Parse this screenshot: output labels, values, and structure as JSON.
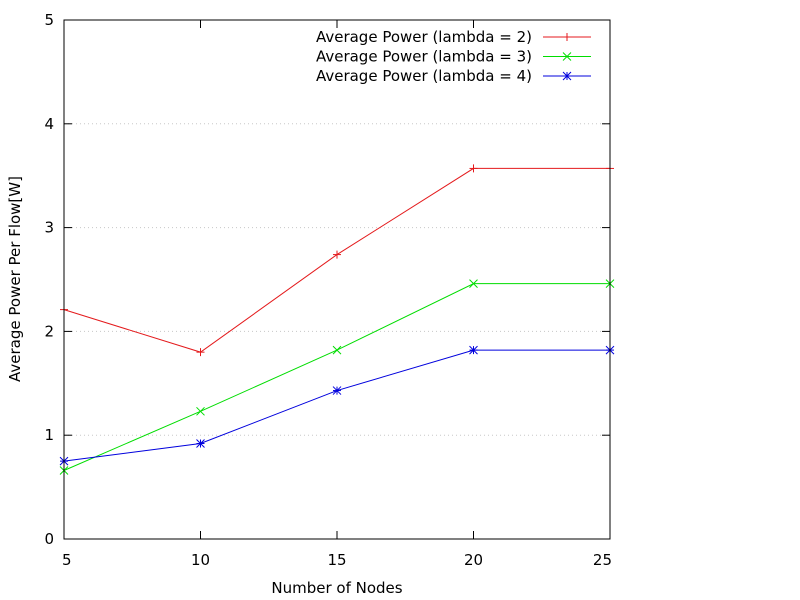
{
  "chart_data": {
    "type": "line",
    "title": "",
    "xlabel": "Number of Nodes",
    "ylabel": "Average Power Per Flow[W]",
    "x": [
      5,
      10,
      15,
      20,
      25
    ],
    "xlim": [
      5,
      25
    ],
    "ylim": [
      0,
      5
    ],
    "xticks": [
      5,
      10,
      15,
      20,
      25
    ],
    "yticks": [
      0,
      1,
      2,
      3,
      4,
      5
    ],
    "grid": "horizontal dotted at y ticks",
    "legend_position": "top-right",
    "series": [
      {
        "name": "Average Power (lambda = 2)",
        "color": "#e41a1c",
        "marker": "plus",
        "values": [
          2.21,
          1.8,
          2.74,
          3.57,
          3.57
        ]
      },
      {
        "name": "Average Power (lambda = 3)",
        "color": "#00dd00",
        "marker": "cross",
        "values": [
          0.66,
          1.23,
          1.82,
          2.46,
          2.46
        ]
      },
      {
        "name": "Average Power (lambda = 4)",
        "color": "#0000dd",
        "marker": "asterisk",
        "values": [
          0.75,
          0.92,
          1.43,
          1.82,
          1.82
        ]
      }
    ]
  }
}
